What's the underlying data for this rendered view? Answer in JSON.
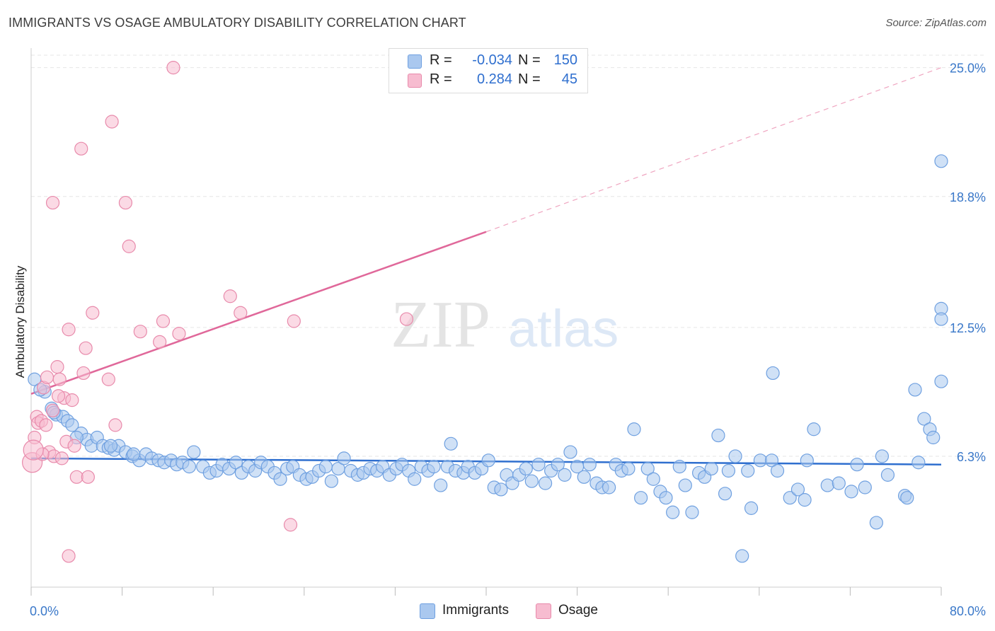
{
  "header": {
    "title": "IMMIGRANTS VS OSAGE AMBULATORY DISABILITY CORRELATION CHART",
    "source": "Source: ZipAtlas.com"
  },
  "watermark": {
    "zip": "ZIP",
    "atlas": "atlas"
  },
  "legend": {
    "rows": [
      {
        "r_label": "R =",
        "r_value": "-0.034",
        "n_label": "N =",
        "n_value": "150",
        "color": "#aac8ef",
        "stroke": "#6fa0e0"
      },
      {
        "r_label": "R =",
        "r_value": "0.284",
        "n_label": "N =",
        "n_value": "45",
        "color": "#f7bcd0",
        "stroke": "#e88aab"
      }
    ]
  },
  "chart_data": {
    "type": "scatter",
    "title": "IMMIGRANTS VS OSAGE AMBULATORY DISABILITY CORRELATION CHART",
    "xlabel": "",
    "ylabel": "Ambulatory Disability",
    "xlim": [
      0,
      80
    ],
    "ylim": [
      0,
      25.6
    ],
    "x_tick_labels": [
      "0.0%",
      "80.0%"
    ],
    "y_ticks": [
      6.3,
      12.5,
      18.8,
      25.0
    ],
    "y_tick_labels": [
      "6.3%",
      "12.5%",
      "18.8%",
      "25.0%"
    ],
    "grid": true,
    "legend_position": "bottom",
    "series": [
      {
        "name": "Immigrants",
        "color": "#aac8ef",
        "stroke": "#6fa0e0",
        "trend": {
          "x0": 0,
          "y0": 6.2,
          "x1": 80,
          "y1": 5.9,
          "color": "#2f6fcf"
        },
        "points": [
          [
            0.3,
            10.0
          ],
          [
            1.2,
            9.4
          ],
          [
            0.8,
            9.5
          ],
          [
            1.8,
            8.6
          ],
          [
            2.2,
            8.3
          ],
          [
            2.8,
            8.2
          ],
          [
            3.2,
            8.0
          ],
          [
            3.6,
            7.8
          ],
          [
            4.4,
            7.4
          ],
          [
            4.9,
            7.1
          ],
          [
            5.3,
            6.8
          ],
          [
            5.8,
            7.2
          ],
          [
            6.3,
            6.8
          ],
          [
            6.8,
            6.7
          ],
          [
            7.3,
            6.6
          ],
          [
            7.7,
            6.8
          ],
          [
            8.3,
            6.5
          ],
          [
            8.9,
            6.3
          ],
          [
            9.5,
            6.1
          ],
          [
            10.1,
            6.4
          ],
          [
            10.6,
            6.2
          ],
          [
            11.2,
            6.1
          ],
          [
            11.7,
            6.0
          ],
          [
            12.3,
            6.1
          ],
          [
            12.8,
            5.9
          ],
          [
            13.3,
            6.0
          ],
          [
            13.9,
            5.8
          ],
          [
            14.3,
            6.5
          ],
          [
            15.1,
            5.8
          ],
          [
            15.7,
            5.5
          ],
          [
            16.3,
            5.6
          ],
          [
            16.8,
            5.9
          ],
          [
            17.4,
            5.7
          ],
          [
            18.0,
            6.0
          ],
          [
            18.5,
            5.5
          ],
          [
            19.1,
            5.8
          ],
          [
            19.7,
            5.6
          ],
          [
            20.2,
            6.0
          ],
          [
            20.8,
            5.8
          ],
          [
            21.4,
            5.5
          ],
          [
            21.9,
            5.2
          ],
          [
            22.5,
            5.7
          ],
          [
            23.0,
            5.8
          ],
          [
            23.6,
            5.4
          ],
          [
            24.2,
            5.2
          ],
          [
            24.7,
            5.3
          ],
          [
            25.3,
            5.6
          ],
          [
            25.9,
            5.8
          ],
          [
            26.4,
            5.1
          ],
          [
            27.0,
            5.7
          ],
          [
            27.5,
            6.2
          ],
          [
            28.1,
            5.6
          ],
          [
            28.7,
            5.4
          ],
          [
            29.2,
            5.5
          ],
          [
            29.8,
            5.7
          ],
          [
            30.4,
            5.6
          ],
          [
            30.9,
            5.8
          ],
          [
            31.5,
            5.4
          ],
          [
            32.1,
            5.7
          ],
          [
            32.6,
            5.9
          ],
          [
            33.2,
            5.6
          ],
          [
            33.7,
            5.2
          ],
          [
            34.3,
            5.8
          ],
          [
            34.9,
            5.6
          ],
          [
            35.4,
            5.8
          ],
          [
            36.0,
            4.9
          ],
          [
            36.6,
            5.8
          ],
          [
            36.9,
            6.9
          ],
          [
            37.3,
            5.6
          ],
          [
            38.0,
            5.5
          ],
          [
            38.4,
            5.8
          ],
          [
            39.0,
            5.5
          ],
          [
            39.6,
            5.7
          ],
          [
            40.2,
            6.1
          ],
          [
            40.7,
            4.8
          ],
          [
            41.3,
            4.7
          ],
          [
            41.8,
            5.4
          ],
          [
            42.3,
            5.0
          ],
          [
            42.9,
            5.4
          ],
          [
            43.5,
            5.7
          ],
          [
            44.0,
            5.1
          ],
          [
            44.6,
            5.9
          ],
          [
            45.2,
            5.0
          ],
          [
            45.7,
            5.6
          ],
          [
            46.3,
            5.9
          ],
          [
            46.9,
            5.4
          ],
          [
            47.4,
            6.5
          ],
          [
            48.0,
            5.8
          ],
          [
            48.6,
            5.3
          ],
          [
            49.1,
            5.9
          ],
          [
            49.7,
            5.0
          ],
          [
            50.2,
            4.8
          ],
          [
            50.8,
            4.8
          ],
          [
            51.4,
            5.9
          ],
          [
            51.9,
            5.6
          ],
          [
            52.5,
            5.7
          ],
          [
            53.0,
            7.6
          ],
          [
            53.6,
            4.3
          ],
          [
            54.2,
            5.7
          ],
          [
            54.7,
            5.2
          ],
          [
            55.3,
            4.6
          ],
          [
            55.8,
            4.3
          ],
          [
            56.4,
            3.6
          ],
          [
            57.0,
            5.8
          ],
          [
            57.5,
            4.9
          ],
          [
            58.1,
            3.6
          ],
          [
            58.7,
            5.5
          ],
          [
            59.2,
            5.3
          ],
          [
            59.8,
            5.7
          ],
          [
            60.4,
            7.3
          ],
          [
            61.0,
            4.5
          ],
          [
            61.3,
            5.6
          ],
          [
            61.9,
            6.3
          ],
          [
            62.5,
            1.5
          ],
          [
            63.0,
            5.6
          ],
          [
            63.3,
            3.8
          ],
          [
            64.1,
            6.1
          ],
          [
            65.1,
            6.1
          ],
          [
            65.2,
            10.3
          ],
          [
            65.6,
            5.6
          ],
          [
            66.7,
            4.3
          ],
          [
            67.4,
            4.7
          ],
          [
            68.0,
            4.2
          ],
          [
            68.2,
            6.1
          ],
          [
            68.8,
            7.6
          ],
          [
            70.0,
            4.9
          ],
          [
            71.0,
            5.0
          ],
          [
            72.1,
            4.6
          ],
          [
            72.6,
            5.9
          ],
          [
            73.3,
            4.8
          ],
          [
            74.3,
            3.1
          ],
          [
            74.8,
            6.3
          ],
          [
            75.3,
            5.4
          ],
          [
            76.8,
            4.4
          ],
          [
            77.0,
            4.3
          ],
          [
            77.7,
            9.5
          ],
          [
            78.0,
            6.0
          ],
          [
            78.5,
            8.1
          ],
          [
            79.0,
            7.6
          ],
          [
            79.3,
            7.2
          ],
          [
            80.0,
            20.5
          ],
          [
            81.0,
            13.4
          ],
          [
            82.4,
            9.9
          ],
          [
            82.7,
            12.9
          ],
          [
            2.0,
            8.4
          ],
          [
            4.0,
            7.2
          ],
          [
            7.0,
            6.8
          ],
          [
            9.0,
            6.4
          ]
        ]
      },
      {
        "name": "Osage",
        "color": "#f7bcd0",
        "stroke": "#e88aab",
        "trend": {
          "x0": 0,
          "y0": 9.3,
          "x1": 40,
          "y1": 17.1,
          "dash_x1": 80,
          "dash_y1": 25.0,
          "color": "#e0689a"
        },
        "points": [
          [
            0.1,
            6.0
          ],
          [
            0.3,
            7.2
          ],
          [
            0.5,
            8.2
          ],
          [
            0.6,
            7.9
          ],
          [
            0.9,
            8.0
          ],
          [
            1.1,
            9.6
          ],
          [
            1.3,
            7.8
          ],
          [
            1.4,
            10.1
          ],
          [
            1.6,
            6.5
          ],
          [
            1.9,
            8.5
          ],
          [
            2.0,
            6.3
          ],
          [
            2.3,
            10.6
          ],
          [
            2.5,
            10.0
          ],
          [
            2.7,
            6.2
          ],
          [
            2.9,
            9.1
          ],
          [
            3.1,
            7.0
          ],
          [
            3.3,
            12.4
          ],
          [
            3.6,
            9.0
          ],
          [
            3.8,
            6.8
          ],
          [
            4.0,
            5.3
          ],
          [
            4.4,
            21.1
          ],
          [
            4.6,
            10.3
          ],
          [
            4.8,
            11.5
          ],
          [
            5.0,
            5.3
          ],
          [
            5.4,
            13.2
          ],
          [
            6.8,
            10.0
          ],
          [
            7.1,
            22.4
          ],
          [
            7.4,
            7.8
          ],
          [
            8.3,
            18.5
          ],
          [
            8.6,
            16.4
          ],
          [
            9.6,
            12.3
          ],
          [
            11.3,
            11.8
          ],
          [
            11.6,
            12.8
          ],
          [
            13.0,
            12.2
          ],
          [
            12.5,
            25.0
          ],
          [
            17.5,
            14.0
          ],
          [
            18.4,
            13.2
          ],
          [
            23.1,
            12.8
          ],
          [
            22.8,
            3.0
          ],
          [
            33.0,
            12.9
          ],
          [
            3.3,
            1.5
          ],
          [
            1.0,
            6.4
          ],
          [
            2.4,
            9.2
          ],
          [
            1.9,
            18.5
          ],
          [
            0.2,
            6.6
          ]
        ]
      }
    ]
  },
  "bottom_legend": {
    "items": [
      {
        "label": "Immigrants",
        "color": "#aac8ef",
        "stroke": "#6fa0e0"
      },
      {
        "label": "Osage",
        "color": "#f7bcd0",
        "stroke": "#e88aab"
      }
    ]
  }
}
